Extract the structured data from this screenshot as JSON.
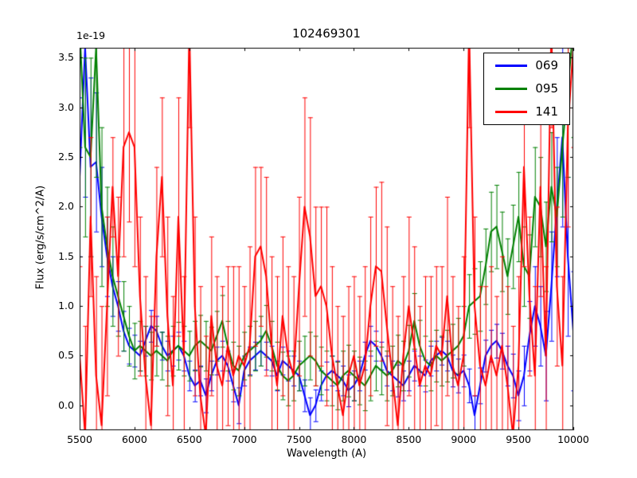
{
  "chart_data": {
    "type": "line",
    "title": "102469301",
    "xlabel": "Wavelength (A)",
    "ylabel": "Flux (erg/s/cm^2/A)",
    "y_offset_label": "1e-19",
    "xlim": [
      5500,
      10000
    ],
    "ylim": [
      -0.25,
      3.6
    ],
    "xticks": [
      5500,
      6000,
      6500,
      7000,
      7500,
      8000,
      8500,
      9000,
      9500,
      10000
    ],
    "yticks": [
      0.0,
      0.5,
      1.0,
      1.5,
      2.0,
      2.5,
      3.0,
      3.5
    ],
    "grid": false,
    "legend_position": "upper right",
    "x": {
      "start": 5500,
      "step": 50,
      "count": 91
    },
    "series": [
      {
        "name": "069",
        "color": "#0000ff",
        "values": [
          2.3,
          3.6,
          2.4,
          2.45,
          1.9,
          1.5,
          1.2,
          1.0,
          0.75,
          0.6,
          0.55,
          0.5,
          0.65,
          0.8,
          0.75,
          0.6,
          0.5,
          0.55,
          0.6,
          0.5,
          0.3,
          0.2,
          0.25,
          0.1,
          0.3,
          0.45,
          0.5,
          0.4,
          0.2,
          0.0,
          0.35,
          0.45,
          0.5,
          0.55,
          0.5,
          0.45,
          0.3,
          0.45,
          0.4,
          0.35,
          0.3,
          0.1,
          -0.1,
          0.0,
          0.2,
          0.3,
          0.35,
          0.3,
          0.25,
          0.15,
          0.2,
          0.3,
          0.5,
          0.65,
          0.6,
          0.5,
          0.35,
          0.3,
          0.25,
          0.2,
          0.3,
          0.4,
          0.35,
          0.3,
          0.45,
          0.5,
          0.55,
          0.5,
          0.35,
          0.3,
          0.35,
          0.2,
          -0.1,
          0.2,
          0.5,
          0.6,
          0.65,
          0.55,
          0.4,
          0.3,
          0.1,
          0.3,
          0.7,
          1.0,
          0.8,
          0.5,
          1.2,
          2.0,
          2.7,
          1.5,
          0.75
        ],
        "errors": [
          0.8,
          1.5,
          0.9,
          0.7,
          0.5,
          0.4,
          0.3,
          0.25,
          0.2,
          0.18,
          0.16,
          0.15,
          0.15,
          0.16,
          0.15,
          0.14,
          0.15,
          0.15,
          0.14,
          0.15,
          0.15,
          0.16,
          0.15,
          0.17,
          0.15,
          0.14,
          0.15,
          0.15,
          0.16,
          0.18,
          0.15,
          0.14,
          0.14,
          0.15,
          0.14,
          0.15,
          0.15,
          0.14,
          0.15,
          0.15,
          0.15,
          0.16,
          0.18,
          0.16,
          0.15,
          0.14,
          0.15,
          0.15,
          0.15,
          0.16,
          0.15,
          0.15,
          0.14,
          0.15,
          0.15,
          0.14,
          0.15,
          0.15,
          0.16,
          0.15,
          0.15,
          0.15,
          0.15,
          0.16,
          0.15,
          0.15,
          0.14,
          0.15,
          0.16,
          0.17,
          0.16,
          0.17,
          0.2,
          0.18,
          0.16,
          0.16,
          0.17,
          0.18,
          0.2,
          0.22,
          0.25,
          0.3,
          0.35,
          0.4,
          0.4,
          0.45,
          0.55,
          0.7,
          0.9,
          0.8,
          0.6
        ]
      },
      {
        "name": "095",
        "color": "#008000",
        "values": [
          3.8,
          2.6,
          2.5,
          3.6,
          2.0,
          1.6,
          1.3,
          1.1,
          0.9,
          0.7,
          0.55,
          0.6,
          0.55,
          0.5,
          0.55,
          0.5,
          0.45,
          0.55,
          0.6,
          0.55,
          0.5,
          0.6,
          0.65,
          0.6,
          0.55,
          0.7,
          0.85,
          0.6,
          0.4,
          0.35,
          0.5,
          0.55,
          0.6,
          0.65,
          0.75,
          0.6,
          0.4,
          0.3,
          0.25,
          0.3,
          0.4,
          0.45,
          0.5,
          0.45,
          0.35,
          0.3,
          0.25,
          0.2,
          0.3,
          0.35,
          0.3,
          0.25,
          0.2,
          0.3,
          0.4,
          0.35,
          0.3,
          0.35,
          0.45,
          0.4,
          0.55,
          0.85,
          0.6,
          0.45,
          0.4,
          0.5,
          0.45,
          0.5,
          0.55,
          0.6,
          0.7,
          1.0,
          1.05,
          1.1,
          1.4,
          1.75,
          1.8,
          1.55,
          1.3,
          1.6,
          1.9,
          1.4,
          1.3,
          2.1,
          2.0,
          1.6,
          2.2,
          1.9,
          2.6,
          3.2,
          3.8
        ],
        "errors": [
          1.2,
          0.9,
          1.0,
          1.3,
          0.8,
          0.6,
          0.5,
          0.4,
          0.35,
          0.3,
          0.28,
          0.25,
          0.25,
          0.24,
          0.25,
          0.24,
          0.25,
          0.25,
          0.24,
          0.25,
          0.25,
          0.25,
          0.26,
          0.25,
          0.24,
          0.25,
          0.26,
          0.25,
          0.24,
          0.25,
          0.24,
          0.25,
          0.25,
          0.25,
          0.26,
          0.25,
          0.24,
          0.24,
          0.25,
          0.25,
          0.25,
          0.25,
          0.24,
          0.25,
          0.24,
          0.25,
          0.25,
          0.24,
          0.25,
          0.26,
          0.25,
          0.24,
          0.25,
          0.25,
          0.25,
          0.24,
          0.25,
          0.25,
          0.26,
          0.25,
          0.26,
          0.28,
          0.26,
          0.25,
          0.25,
          0.26,
          0.25,
          0.26,
          0.27,
          0.28,
          0.3,
          0.32,
          0.33,
          0.35,
          0.38,
          0.4,
          0.42,
          0.4,
          0.38,
          0.42,
          0.45,
          0.4,
          0.42,
          0.5,
          0.5,
          0.45,
          0.55,
          0.5,
          0.7,
          0.9,
          1.1
        ]
      },
      {
        "name": "141",
        "color": "#ff0000",
        "values": [
          0.5,
          -0.3,
          1.9,
          0.3,
          -0.2,
          1.0,
          2.2,
          1.3,
          2.6,
          2.75,
          2.6,
          1.1,
          0.3,
          -0.2,
          1.5,
          2.3,
          0.9,
          0.2,
          1.9,
          0.5,
          3.8,
          1.0,
          0.1,
          -0.3,
          0.9,
          0.4,
          0.2,
          0.6,
          0.3,
          0.5,
          0.4,
          0.6,
          1.5,
          1.6,
          1.3,
          0.6,
          0.2,
          0.9,
          0.5,
          0.3,
          1.2,
          2.0,
          1.7,
          1.1,
          1.2,
          1.0,
          0.5,
          0.2,
          -0.1,
          0.3,
          0.5,
          0.2,
          0.4,
          1.0,
          1.4,
          1.35,
          0.8,
          0.3,
          -0.2,
          0.5,
          1.0,
          0.6,
          0.2,
          0.4,
          0.3,
          0.6,
          0.5,
          1.1,
          0.4,
          0.2,
          0.5,
          3.8,
          1.0,
          0.4,
          0.2,
          0.5,
          0.3,
          0.6,
          0.2,
          -0.3,
          0.4,
          2.4,
          1.1,
          0.3,
          2.2,
          0.5,
          3.8,
          1.2,
          0.4,
          2.8,
          3.6
        ],
        "errors": [
          0.9,
          1.1,
          0.8,
          1.0,
          1.2,
          0.9,
          0.5,
          0.8,
          1.1,
          0.9,
          1.2,
          0.8,
          1.0,
          1.1,
          0.9,
          0.8,
          1.0,
          0.9,
          1.2,
          0.8,
          1.0,
          0.9,
          1.1,
          1.0,
          0.8,
          0.9,
          1.0,
          0.8,
          1.1,
          0.9,
          0.8,
          1.0,
          0.9,
          0.8,
          1.0,
          0.9,
          1.1,
          0.8,
          0.9,
          1.0,
          0.9,
          1.1,
          1.2,
          0.9,
          0.8,
          1.0,
          0.9,
          0.8,
          1.0,
          0.9,
          0.8,
          0.9,
          1.0,
          0.9,
          0.8,
          0.9,
          1.0,
          0.9,
          1.1,
          0.8,
          0.9,
          1.0,
          0.8,
          0.9,
          1.0,
          0.8,
          0.9,
          1.0,
          0.9,
          0.8,
          1.0,
          1.0,
          0.9,
          0.8,
          1.0,
          0.9,
          0.8,
          0.9,
          1.0,
          1.1,
          0.9,
          1.0,
          0.8,
          0.9,
          1.1,
          0.9,
          1.0,
          0.8,
          0.9,
          1.0,
          1.0
        ]
      }
    ]
  }
}
